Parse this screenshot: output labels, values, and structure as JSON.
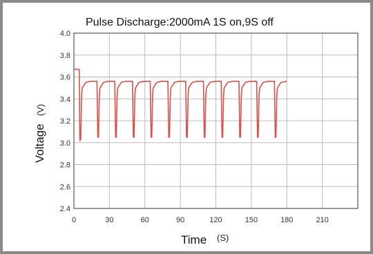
{
  "chart_data": {
    "type": "line",
    "title": "Pulse Discharge:2000mA   1S on,9S off",
    "xlabel": "Time",
    "xunit": "(S)",
    "ylabel": "Voltage",
    "yunit": "(V)",
    "xlim": [
      0,
      240
    ],
    "ylim": [
      2.4,
      4.0
    ],
    "xticks": [
      "0",
      "30",
      "60",
      "90",
      "120",
      "150",
      "180",
      "210"
    ],
    "yticks": [
      "4.0",
      "3.8",
      "3.6",
      "3.4",
      "3.2",
      "3.0",
      "2.8",
      "2.6",
      "2.4"
    ],
    "grid": true,
    "series": [
      {
        "color": "#d9504a",
        "x": [
          0,
          4.5,
          5,
          5.8,
          6.5,
          7,
          10,
          14,
          19.5,
          20.2,
          20.8,
          21.5,
          22,
          25,
          29,
          34.5,
          35.2,
          35.8,
          36.5,
          37,
          40,
          44,
          49.5,
          50.2,
          50.8,
          51.5,
          52,
          55,
          59,
          64.5,
          65.2,
          65.8,
          66.5,
          67,
          70,
          74,
          79.5,
          80.2,
          80.8,
          81.5,
          82,
          85,
          89,
          94.5,
          95.2,
          95.8,
          96.5,
          97,
          100,
          104,
          109.5,
          110.2,
          110.8,
          111.5,
          112,
          115,
          119,
          124.5,
          125.2,
          125.8,
          126.5,
          127,
          130,
          134,
          139.5,
          140.2,
          140.8,
          141.5,
          142,
          145,
          149,
          154.5,
          155.2,
          155.8,
          156.5,
          157,
          160,
          164,
          169.5,
          170.2,
          170.8,
          171.5,
          172,
          175,
          180
        ],
        "y": [
          3.67,
          3.67,
          3.02,
          3.03,
          3.42,
          3.5,
          3.55,
          3.56,
          3.56,
          3.05,
          3.05,
          3.42,
          3.5,
          3.55,
          3.56,
          3.56,
          3.05,
          3.05,
          3.42,
          3.5,
          3.55,
          3.56,
          3.56,
          3.05,
          3.05,
          3.42,
          3.5,
          3.55,
          3.56,
          3.56,
          3.05,
          3.05,
          3.42,
          3.5,
          3.55,
          3.56,
          3.56,
          3.05,
          3.05,
          3.42,
          3.5,
          3.55,
          3.56,
          3.56,
          3.05,
          3.05,
          3.42,
          3.5,
          3.55,
          3.56,
          3.56,
          3.05,
          3.05,
          3.42,
          3.5,
          3.55,
          3.56,
          3.56,
          3.05,
          3.05,
          3.42,
          3.5,
          3.55,
          3.56,
          3.56,
          3.05,
          3.05,
          3.42,
          3.5,
          3.55,
          3.56,
          3.56,
          3.05,
          3.05,
          3.42,
          3.5,
          3.55,
          3.56,
          3.56,
          3.05,
          3.05,
          3.42,
          3.5,
          3.55,
          3.56
        ]
      }
    ]
  }
}
